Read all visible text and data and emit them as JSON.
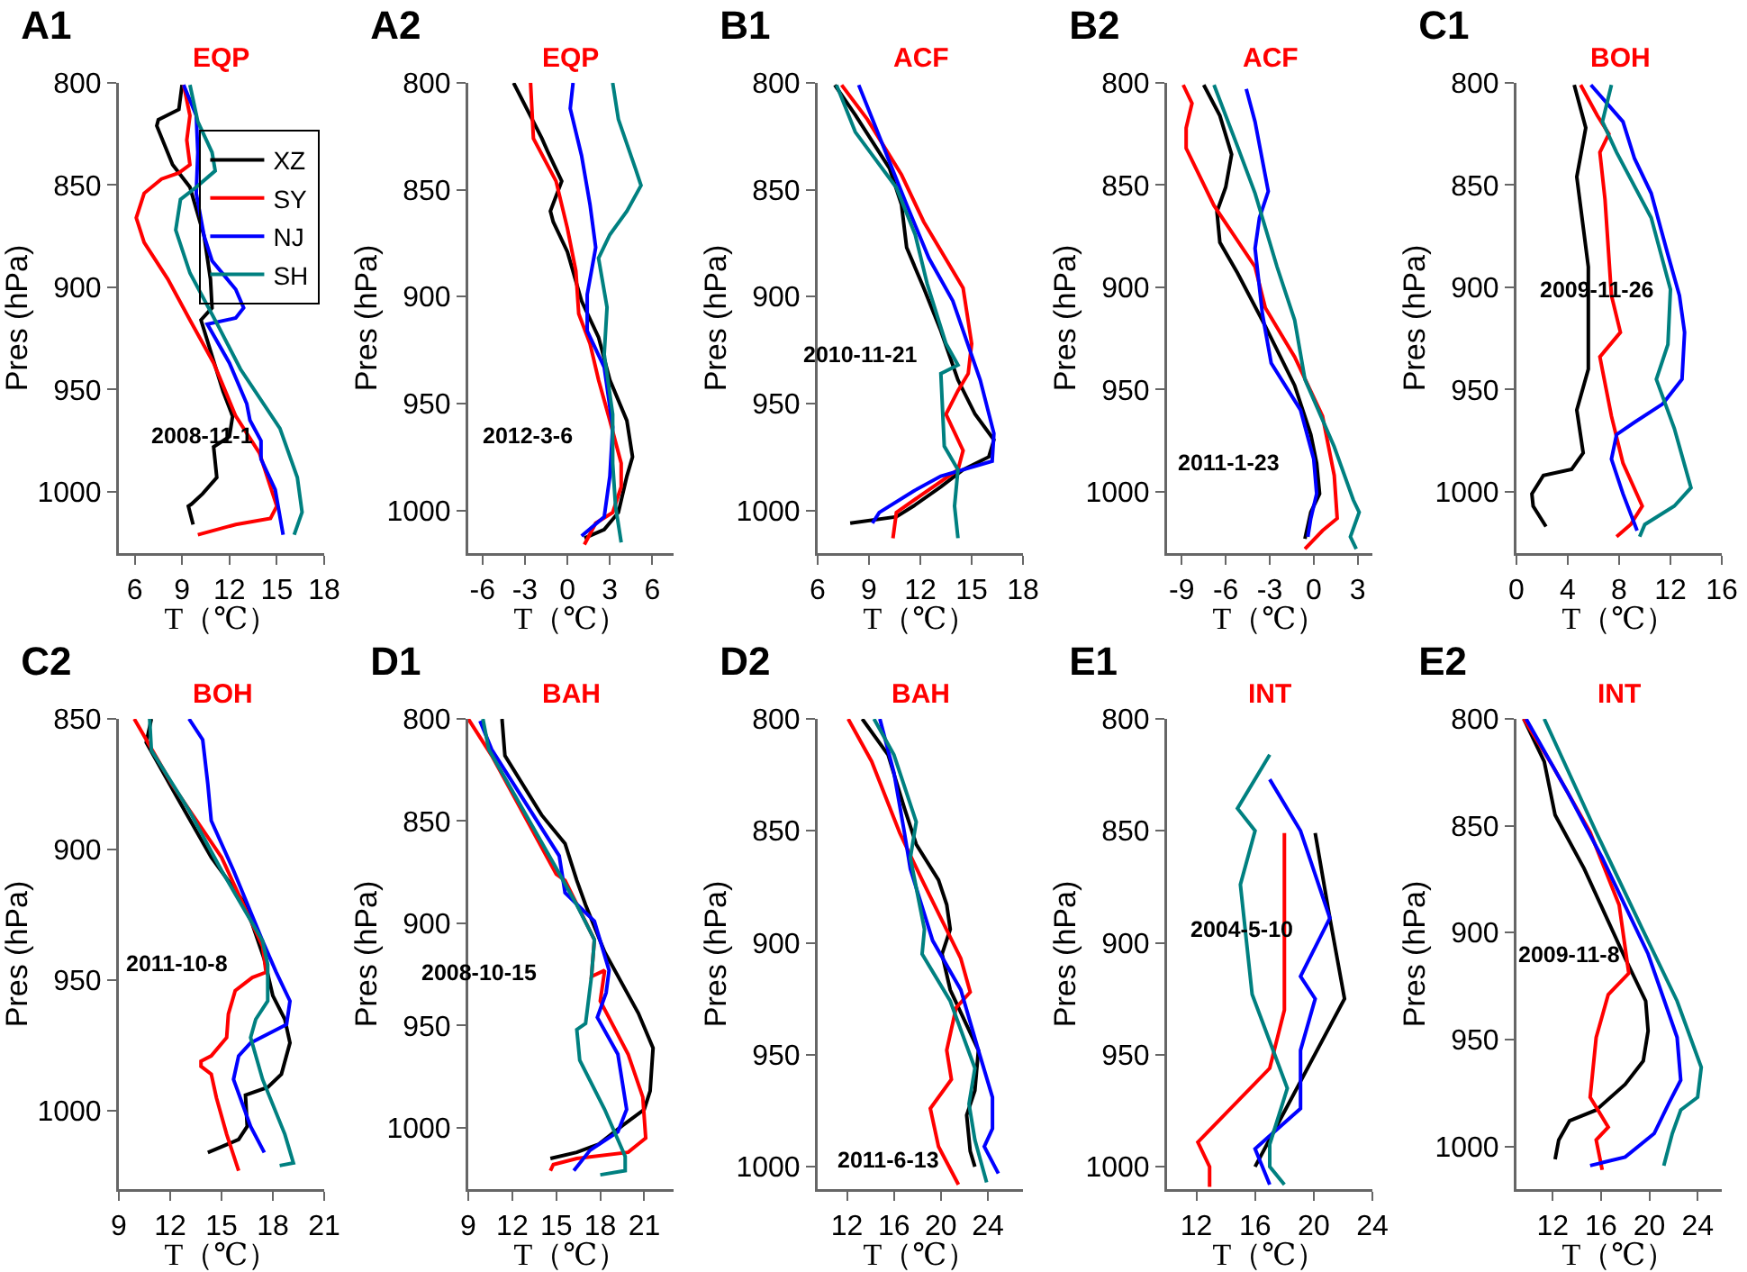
{
  "chart_data": [
    {
      "type": "line",
      "title": "A1",
      "subtitle": "EQP",
      "xlabel": "T（℃）",
      "ylabel": "Pres (hPa)",
      "annotations": [
        "2008-11-1"
      ],
      "legend": "top right",
      "xlim": [
        5,
        18
      ],
      "xticks": [
        6,
        9,
        12,
        15,
        18
      ],
      "ylim": [
        1030,
        800
      ],
      "yticks": [
        800,
        850,
        900,
        950,
        1000
      ],
      "series": [
        {
          "name": "XZ",
          "color": "#000000",
          "x": [
            9,
            8.8,
            7.5,
            7.4,
            8.4,
            9.5,
            10.4,
            10.8,
            10.9,
            10.2,
            10.8,
            11.6,
            12.2,
            12.0,
            11.0,
            11.2,
            10.3,
            9.6,
            9.4,
            9.7
          ],
          "values": [
            801,
            813,
            818,
            821,
            840,
            851,
            875,
            896,
            910,
            916,
            931,
            951,
            963,
            973,
            978,
            993,
            1001,
            1006,
            1007,
            1016
          ]
        },
        {
          "name": "SY",
          "color": "#ff0000",
          "x": [
            9.1,
            9.5,
            9.3,
            9.5,
            8.8,
            7.7,
            6.6,
            6.1,
            6.6,
            8.1,
            9.5,
            11.0,
            12.4,
            13.9,
            15.0,
            14.6,
            12.4,
            10.0
          ],
          "values": [
            801,
            816,
            828,
            840,
            844,
            847,
            854,
            866,
            878,
            896,
            916,
            937,
            963,
            981,
            1007,
            1013,
            1016,
            1021
          ]
        },
        {
          "name": "NJ",
          "color": "#0000ff",
          "x": [
            9.1,
            9.9,
            10.0,
            9.9,
            10.4,
            10.9,
            12.4,
            12.9,
            12.4,
            10.6,
            12.0,
            13.1,
            13.3,
            14.0,
            14.0,
            14.9,
            15.4
          ],
          "values": [
            801,
            816,
            834,
            854,
            875,
            887,
            901,
            910,
            915,
            918,
            937,
            957,
            965,
            975,
            984,
            999,
            1021
          ]
        },
        {
          "name": "SH",
          "color": "#008080",
          "x": [
            9.5,
            10.0,
            10.9,
            11.1,
            9.9,
            8.9,
            8.6,
            9.5,
            11.3,
            12.7,
            15.2,
            16.3,
            16.6,
            16.1
          ],
          "values": [
            801,
            819,
            834,
            843,
            851,
            857,
            872,
            893,
            919,
            940,
            969,
            993,
            1010,
            1021
          ]
        }
      ]
    },
    {
      "type": "line",
      "title": "A2",
      "subtitle": "EQP",
      "xlabel": "T（℃）",
      "ylabel": "Pres (hPa)",
      "annotations": [
        "2012-3-6"
      ],
      "xlim": [
        -7,
        7.5
      ],
      "xticks": [
        -6,
        -3,
        0,
        3,
        6
      ],
      "ylim": [
        1020,
        800
      ],
      "yticks": [
        800,
        850,
        900,
        950,
        1000
      ],
      "series": [
        {
          "color": "#000000",
          "x": [
            -3.8,
            -1.8,
            -1.4,
            -0.4,
            -1.2,
            -1.0,
            0,
            1.0,
            2.2,
            3.0,
            4.2,
            4.6,
            4.2,
            3.6,
            2.6,
            1.2
          ],
          "values": [
            800,
            826,
            832,
            846,
            860,
            865,
            879,
            902,
            919,
            939,
            958,
            975,
            984,
            1001,
            1009,
            1013
          ]
        },
        {
          "color": "#ff0000",
          "x": [
            -2.6,
            -2.4,
            -0.8,
            0,
            0.6,
            0.8,
            1.6,
            2.2,
            3.0,
            3.8,
            3.8,
            3.2,
            2.0,
            1.2
          ],
          "values": [
            800,
            826,
            846,
            868,
            888,
            908,
            922,
            939,
            958,
            978,
            989,
            1001,
            1006,
            1016
          ]
        },
        {
          "color": "#0000ff",
          "x": [
            0.4,
            0.2,
            1.0,
            1.6,
            2.0,
            1.4,
            1.4,
            2.6,
            3.2,
            3.0,
            2.6,
            1.0
          ],
          "values": [
            800,
            812,
            834,
            857,
            877,
            899,
            916,
            933,
            961,
            984,
            1003,
            1012
          ]
        },
        {
          "color": "#008080",
          "x": [
            3.2,
            3.6,
            4.8,
            5.2,
            4.2,
            3.0,
            2.2,
            2.8,
            2.6,
            3.2,
            3.2,
            3.4,
            3.8
          ],
          "values": [
            800,
            817,
            840,
            848,
            860,
            871,
            882,
            905,
            927,
            955,
            978,
            998,
            1015
          ]
        }
      ]
    },
    {
      "type": "line",
      "title": "B1",
      "subtitle": "ACF",
      "xlabel": "T（℃）",
      "ylabel": "Pres (hPa)",
      "annotations": [
        "2010-11-21"
      ],
      "xlim": [
        6,
        18
      ],
      "xticks": [
        6,
        9,
        12,
        15,
        18
      ],
      "ylim": [
        1020,
        800
      ],
      "yticks": [
        800,
        850,
        900,
        950,
        1000
      ],
      "series": [
        {
          "color": "#000000",
          "x": [
            7.0,
            8.2,
            10.2,
            10.9,
            11.2,
            12.2,
            13.2,
            14.2,
            15.2,
            16.3,
            16.0,
            14.5,
            13.2,
            11.6,
            10.6,
            7.9
          ],
          "values": [
            801,
            815,
            840,
            857,
            877,
            896,
            916,
            939,
            955,
            967,
            975,
            981,
            989,
            998,
            1003,
            1006
          ]
        },
        {
          "color": "#ff0000",
          "x": [
            7.4,
            8.9,
            10.9,
            12.2,
            14.5,
            15.0,
            14.8,
            14.2,
            13.5,
            14.5,
            14.2,
            12.2,
            10.6,
            10.4
          ],
          "values": [
            801,
            817,
            843,
            865,
            896,
            922,
            936,
            944,
            955,
            972,
            981,
            992,
            1001,
            1013
          ]
        },
        {
          "color": "#0000ff",
          "x": [
            8.4,
            9.2,
            11.2,
            12.5,
            13.9,
            15.5,
            16.3,
            16.2,
            13.2,
            11.6,
            9.6,
            9.2
          ],
          "values": [
            801,
            817,
            857,
            882,
            902,
            939,
            964,
            977,
            984,
            991,
            1001,
            1006
          ]
        },
        {
          "color": "#008080",
          "x": [
            7.1,
            8.2,
            10.6,
            11.7,
            12.4,
            13.5,
            14.2,
            13.2,
            13.4,
            14.2,
            14.0,
            14.2
          ],
          "values": [
            801,
            823,
            849,
            871,
            894,
            922,
            932,
            936,
            970,
            981,
            998,
            1013
          ]
        }
      ]
    },
    {
      "type": "line",
      "title": "B2",
      "subtitle": "ACF",
      "xlabel": "T（℃）",
      "ylabel": "Pres (hPa)",
      "annotations": [
        "2011-1-23"
      ],
      "xlim": [
        -10,
        4
      ],
      "xticks": [
        -9,
        -6,
        -3,
        0,
        3
      ],
      "ylim": [
        1030,
        800
      ],
      "yticks": [
        800,
        850,
        900,
        950,
        1000
      ],
      "series": [
        {
          "color": "#000000",
          "x": [
            -7.5,
            -6.4,
            -5.6,
            -6.0,
            -6.6,
            -6.4,
            -5.2,
            -3.3,
            -1.3,
            -0.2,
            0.2,
            0.4,
            -0.2,
            -0.6
          ],
          "values": [
            801,
            816,
            835,
            851,
            863,
            878,
            893,
            919,
            948,
            972,
            986,
            1001,
            1010,
            1023
          ]
        },
        {
          "color": "#ff0000",
          "x": [
            -8.9,
            -8.3,
            -8.7,
            -8.7,
            -6.8,
            -4.0,
            -3.3,
            -1.3,
            0.6,
            1.4,
            1.6,
            0.6,
            -0.6
          ],
          "values": [
            801,
            810,
            822,
            832,
            860,
            890,
            910,
            934,
            963,
            992,
            1013,
            1019,
            1028
          ]
        },
        {
          "color": "#0000ff",
          "x": [
            -4.6,
            -4.0,
            -3.1,
            -3.7,
            -4.0,
            -3.5,
            -2.9,
            -0.9,
            0,
            0.2,
            -0.2,
            -0.4
          ],
          "values": [
            803,
            819,
            853,
            866,
            881,
            913,
            937,
            960,
            984,
            1001,
            1013,
            1022
          ]
        },
        {
          "color": "#008080",
          "x": [
            -6.8,
            -5.2,
            -4.0,
            -2.5,
            -1.3,
            -0.6,
            1.4,
            2.7,
            3.1,
            2.5,
            2.9
          ],
          "values": [
            801,
            831,
            854,
            890,
            916,
            945,
            978,
            1004,
            1010,
            1022,
            1028
          ]
        }
      ]
    },
    {
      "type": "line",
      "title": "C1",
      "subtitle": "BOH",
      "xlabel": "T（℃）",
      "ylabel": "Pres (hPa)",
      "annotations": [
        "2009-11-26"
      ],
      "xlim": [
        0,
        16
      ],
      "xticks": [
        0,
        4,
        8,
        12,
        16
      ],
      "ylim": [
        1030,
        800
      ],
      "yticks": [
        800,
        850,
        900,
        950,
        1000
      ],
      "series": [
        {
          "color": "#000000",
          "x": [
            4.5,
            5.4,
            4.7,
            5.6,
            5.6,
            4.7,
            5.2,
            4.3,
            2.1,
            1.2,
            1.3,
            2.3
          ],
          "values": [
            801,
            822,
            846,
            890,
            940,
            960,
            981,
            989,
            992,
            1001,
            1007,
            1017
          ]
        },
        {
          "color": "#ff0000",
          "x": [
            5.0,
            6.3,
            7.2,
            6.5,
            6.9,
            7.4,
            8.1,
            6.5,
            7.4,
            8.3,
            9.8,
            8.9,
            7.8
          ],
          "values": [
            801,
            816,
            825,
            834,
            857,
            904,
            922,
            934,
            963,
            986,
            1007,
            1016,
            1022
          ]
        },
        {
          "color": "#0000ff",
          "x": [
            5.8,
            8.3,
            9.2,
            10.5,
            11.8,
            12.7,
            13.1,
            12.9,
            11.4,
            9.2,
            7.8,
            7.4,
            8.3,
            9.4
          ],
          "values": [
            801,
            819,
            837,
            854,
            884,
            904,
            922,
            945,
            957,
            966,
            972,
            984,
            1001,
            1019
          ]
        },
        {
          "color": "#008080",
          "x": [
            7.4,
            6.7,
            7.8,
            10.5,
            12.0,
            11.8,
            10.9,
            12.3,
            13.6,
            12.3,
            10.0,
            9.6
          ],
          "values": [
            801,
            819,
            834,
            866,
            901,
            928,
            945,
            969,
            998,
            1007,
            1016,
            1022
          ]
        }
      ]
    },
    {
      "type": "line",
      "title": "C2",
      "subtitle": "BOH",
      "xlabel": "T（℃）",
      "ylabel": "Pres (hPa)",
      "annotations": [
        "2011-10-8"
      ],
      "xlim": [
        9,
        21
      ],
      "xticks": [
        9,
        12,
        15,
        18,
        21
      ],
      "ylim": [
        1030,
        850
      ],
      "yticks": [
        850,
        900,
        950,
        1000
      ],
      "series": [
        {
          "color": "#000000",
          "x": [
            10.9,
            10.6,
            12.4,
            14.4,
            16.4,
            17.5,
            18.0,
            18.7,
            19.0,
            18.5,
            17.7,
            16.4,
            16.5,
            16.0,
            14.2
          ],
          "values": [
            850,
            859,
            880,
            903,
            921,
            942,
            956,
            965,
            974,
            986,
            991,
            994,
            1006,
            1011,
            1016
          ]
        },
        {
          "color": "#ff0000",
          "x": [
            9.9,
            12.1,
            15.0,
            17.4,
            17.6,
            16.8,
            15.8,
            15.4,
            15.3,
            14.4,
            13.8,
            13.8,
            14.4,
            14.7,
            15.3,
            16.0
          ],
          "values": [
            850,
            875,
            903,
            937,
            947,
            949,
            954,
            963,
            972,
            979,
            981,
            983,
            986,
            995,
            1009,
            1023
          ]
        },
        {
          "color": "#0000ff",
          "x": [
            13.1,
            13.9,
            14.2,
            14.4,
            15.7,
            17.4,
            18.2,
            19.0,
            18.8,
            16.7,
            16.0,
            15.7,
            16.7,
            17.5
          ],
          "values": [
            850,
            858,
            875,
            889,
            908,
            935,
            947,
            958,
            967,
            974,
            979,
            988,
            1006,
            1016
          ]
        },
        {
          "color": "#008080",
          "x": [
            10.8,
            10.9,
            13.1,
            15.0,
            17.4,
            17.7,
            17.7,
            17.0,
            16.7,
            17.4,
            18.7,
            19.2,
            18.4
          ],
          "values": [
            850,
            862,
            885,
            908,
            935,
            944,
            958,
            965,
            972,
            988,
            1009,
            1020,
            1021
          ]
        }
      ]
    },
    {
      "type": "line",
      "title": "D1",
      "subtitle": "BAH",
      "xlabel": "T（℃）",
      "ylabel": "Pres (hPa)",
      "annotations": [
        "2008-10-15"
      ],
      "xlim": [
        9,
        23
      ],
      "xticks": [
        9,
        12,
        15,
        18,
        21
      ],
      "ylim": [
        1030,
        800
      ],
      "yticks": [
        800,
        850,
        900,
        950,
        1000
      ],
      "series": [
        {
          "color": "#000000",
          "x": [
            11.3,
            11.5,
            14.0,
            15.6,
            16.4,
            17.0,
            18.3,
            20.6,
            21.6,
            21.4,
            21.0,
            19.5,
            17.9,
            16.4,
            14.6
          ],
          "values": [
            800,
            818,
            847,
            861,
            879,
            891,
            914,
            944,
            961,
            982,
            991,
            999,
            1008,
            1012,
            1015
          ]
        },
        {
          "color": "#ff0000",
          "x": [
            9.0,
            10.6,
            15.0,
            15.6,
            17.6,
            17.4,
            18.3,
            18.0,
            19.9,
            20.9,
            21.1,
            19.9,
            16.4,
            14.8,
            14.6
          ],
          "values": [
            800,
            818,
            876,
            879,
            908,
            926,
            923,
            938,
            964,
            985,
            1005,
            1012,
            1015,
            1018,
            1021
          ]
        },
        {
          "color": "#0000ff",
          "x": [
            9.8,
            10.6,
            15.2,
            15.6,
            17.6,
            18.6,
            18.4,
            17.8,
            19.2,
            19.8,
            19.2,
            17.3,
            16.2
          ],
          "values": [
            801,
            815,
            867,
            885,
            899,
            923,
            934,
            946,
            964,
            991,
            1002,
            1011,
            1021
          ]
        },
        {
          "color": "#008080",
          "x": [
            10.0,
            10.4,
            15.0,
            16.4,
            17.6,
            17.4,
            17.0,
            16.4,
            16.6,
            18.3,
            19.7,
            19.7,
            18.0
          ],
          "values": [
            800,
            815,
            873,
            891,
            908,
            926,
            949,
            952,
            967,
            991,
            1014,
            1021,
            1023
          ]
        }
      ]
    },
    {
      "type": "line",
      "title": "D2",
      "subtitle": "BAH",
      "xlabel": "T（℃）",
      "ylabel": "Pres (hPa)",
      "annotations": [
        "2011-6-13"
      ],
      "xlim": [
        9.5,
        27
      ],
      "xticks": [
        12,
        16,
        20,
        24
      ],
      "ylim": [
        1010,
        800
      ],
      "yticks": [
        800,
        850,
        900,
        950,
        1000
      ],
      "series": [
        {
          "color": "#000000",
          "x": [
            13.3,
            15.5,
            16.9,
            17.9,
            19.8,
            20.5,
            20.8,
            20.1,
            20.8,
            23.2,
            22.9,
            22.2,
            22.5,
            22.9
          ],
          "values": [
            800,
            816,
            840,
            856,
            872,
            883,
            894,
            905,
            921,
            948,
            966,
            977,
            993,
            1000
          ]
        },
        {
          "color": "#ff0000",
          "x": [
            12.1,
            14.1,
            16.5,
            18.4,
            21.7,
            22.5,
            21.3,
            20.5,
            20.9,
            19.1,
            19.8,
            21.5
          ],
          "values": [
            800,
            819,
            851,
            872,
            907,
            922,
            929,
            948,
            961,
            974,
            991,
            1008
          ]
        },
        {
          "color": "#0000ff",
          "x": [
            14.8,
            16.0,
            16.9,
            17.4,
            19.3,
            21.7,
            23.2,
            24.4,
            24.4,
            23.7,
            24.9
          ],
          "values": [
            800,
            824,
            851,
            867,
            899,
            921,
            948,
            969,
            983,
            991,
            1003
          ]
        },
        {
          "color": "#008080",
          "x": [
            14.3,
            16.0,
            17.9,
            17.4,
            18.6,
            18.4,
            20.8,
            22.9,
            22.4,
            22.9,
            23.9
          ],
          "values": [
            800,
            816,
            846,
            862,
            894,
            905,
            926,
            956,
            972,
            988,
            1007
          ]
        }
      ]
    },
    {
      "type": "line",
      "title": "E1",
      "subtitle": "INT",
      "xlabel": "T（℃）",
      "ylabel": "Pres (hPa)",
      "annotations": [
        "2004-5-10"
      ],
      "xlim": [
        10,
        24
      ],
      "xticks": [
        12,
        16,
        20,
        24
      ],
      "ylim": [
        1010,
        800
      ],
      "yticks": [
        800,
        850,
        900,
        950,
        1000
      ],
      "series": [
        {
          "color": "#000000",
          "x": [
            20.1,
            21.1,
            22.1,
            16.0
          ],
          "values": [
            851,
            889,
            925,
            1000
          ]
        },
        {
          "color": "#ff0000",
          "x": [
            18.0,
            18.0,
            17.0,
            12.1,
            12.9,
            12.9
          ],
          "values": [
            851,
            930,
            956,
            989,
            1000,
            1009
          ]
        },
        {
          "color": "#0000ff",
          "x": [
            17.0,
            19.1,
            21.1,
            19.1,
            20.1,
            19.1,
            19.1,
            16.0,
            17.0
          ],
          "values": [
            827,
            850,
            889,
            915,
            925,
            948,
            974,
            992,
            1008
          ]
        },
        {
          "color": "#008080",
          "x": [
            17.0,
            14.8,
            16.0,
            15.0,
            15.8,
            18.2,
            17.0,
            17.0,
            18.0
          ],
          "values": [
            816,
            840,
            850,
            874,
            923,
            965,
            990,
            1000,
            1008
          ]
        }
      ]
    },
    {
      "type": "line",
      "title": "E2",
      "subtitle": "INT",
      "xlabel": "T（℃）",
      "ylabel": "Pres (hPa)",
      "annotations": [
        "2009-11-8"
      ],
      "xlim": [
        9,
        26
      ],
      "xticks": [
        12,
        16,
        20,
        24
      ],
      "ylim": [
        1020,
        800
      ],
      "yticks": [
        800,
        850,
        900,
        950,
        1000
      ],
      "series": [
        {
          "color": "#000000",
          "x": [
            9.6,
            11.3,
            12.2,
            14.6,
            18.0,
            19.7,
            19.9,
            19.5,
            18.0,
            15.6,
            13.4,
            12.5,
            12.2
          ],
          "values": [
            800,
            820,
            845,
            870,
            912,
            932,
            946,
            960,
            971,
            983,
            988,
            997,
            1006
          ]
        },
        {
          "color": "#ff0000",
          "x": [
            9.6,
            12.0,
            15.1,
            17.5,
            18.3,
            16.6,
            15.6,
            15.1,
            16.6,
            15.6,
            16.1
          ],
          "values": [
            800,
            822,
            853,
            887,
            919,
            929,
            949,
            977,
            991,
            997,
            1011
          ]
        },
        {
          "color": "#0000ff",
          "x": [
            9.8,
            13.2,
            16.1,
            19.9,
            22.3,
            22.6,
            21.6,
            20.4,
            18.0,
            15.1
          ],
          "values": [
            800,
            834,
            865,
            910,
            949,
            969,
            980,
            994,
            1005,
            1009
          ]
        },
        {
          "color": "#008080",
          "x": [
            11.3,
            15.6,
            19.4,
            22.3,
            24.3,
            24.0,
            22.6,
            21.9,
            21.2
          ],
          "values": [
            800,
            853,
            898,
            932,
            963,
            977,
            983,
            994,
            1009
          ]
        }
      ]
    }
  ]
}
